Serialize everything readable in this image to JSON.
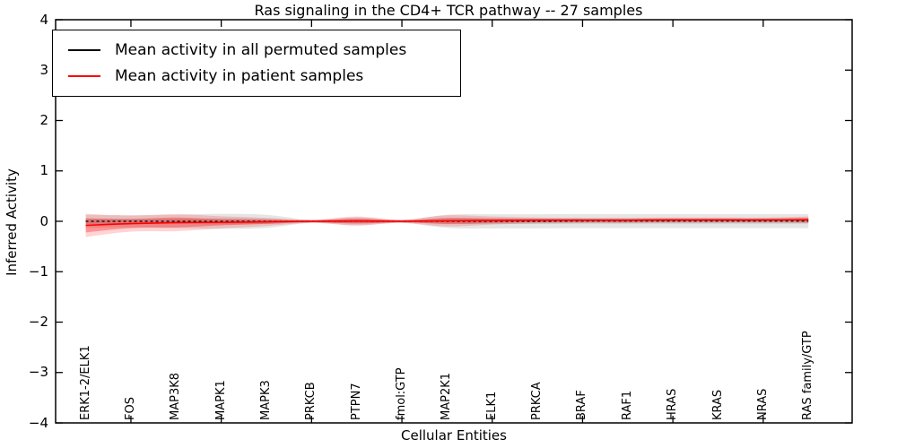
{
  "header": {
    "title": "Ras signaling in the CD4+ TCR pathway -- 27 samples"
  },
  "axes": {
    "ylabel": "Inferred Activity",
    "xlabel": "Cellular Entities",
    "ytick_labels": [
      "4",
      "3",
      "2",
      "1",
      "0",
      "-1",
      "-2",
      "-3",
      "-4"
    ]
  },
  "legend": {
    "items": [
      {
        "label": "Mean activity in all permuted samples",
        "color": "#000000"
      },
      {
        "label": "Mean activity in patient samples",
        "color": "#ff0000"
      }
    ]
  },
  "chart_data": {
    "type": "line",
    "title": "Ras signaling in the CD4+ TCR pathway -- 27 samples",
    "xlabel": "Cellular Entities",
    "ylabel": "Inferred Activity",
    "ylim": [
      -4,
      4
    ],
    "ytick_step": 1,
    "grid": false,
    "legend_position": "upper left",
    "categories": [
      "ERK1-2/ELK1",
      "FOS",
      "MAP3K8",
      "MAPK1",
      "MAPK3",
      "PRKCB",
      "PTPN7",
      "fmol:GTP",
      "MAP2K1",
      "ELK1",
      "PRKCA",
      "BRAF",
      "RAF1",
      "HRAS",
      "KRAS",
      "NRAS",
      "RAS family/GTP"
    ],
    "series": [
      {
        "name": "Mean activity in all permuted samples",
        "color": "#000000",
        "style": "dashed",
        "values": [
          0,
          0,
          0,
          0,
          0,
          0,
          0,
          0,
          0,
          0,
          0,
          0.005,
          0.005,
          0.005,
          0.005,
          0.005,
          0.005
        ]
      },
      {
        "name": "Mean activity in patient samples",
        "color": "#ff0000",
        "style": "solid",
        "values": [
          -0.08,
          -0.045,
          -0.025,
          -0.02,
          -0.01,
          0,
          0.005,
          0,
          0.01,
          0.015,
          0.02,
          0.02,
          0.02,
          0.025,
          0.025,
          0.025,
          0.03
        ]
      }
    ],
    "bands": [
      {
        "name": "permuted-outer-band",
        "center_series": 0,
        "fill": "rgba(0,0,0,0.10)",
        "half_widths": [
          0.13,
          0.12,
          0.13,
          0.15,
          0.13,
          0.03,
          0.08,
          0.03,
          0.13,
          0.14,
          0.14,
          0.14,
          0.14,
          0.14,
          0.14,
          0.14,
          0.14
        ]
      },
      {
        "name": "permuted-inner-band",
        "center_series": 0,
        "fill": "rgba(0,0,0,0.13)",
        "half_widths": [
          0.05,
          0.05,
          0.05,
          0.06,
          0.05,
          0.02,
          0.04,
          0.02,
          0.05,
          0.05,
          0.05,
          0.05,
          0.05,
          0.05,
          0.05,
          0.05,
          0.05
        ]
      },
      {
        "name": "patient-outer-band",
        "center_series": 1,
        "fill": "rgba(255,0,0,0.17)",
        "half_widths": [
          0.23,
          0.16,
          0.17,
          0.12,
          0.08,
          0.03,
          0.09,
          0.03,
          0.11,
          0.08,
          0.055,
          0.05,
          0.05,
          0.05,
          0.05,
          0.05,
          0.065
        ]
      },
      {
        "name": "patient-inner-band",
        "center_series": 1,
        "fill": "rgba(255,0,0,0.30)",
        "half_widths": [
          0.14,
          0.09,
          0.1,
          0.06,
          0.04,
          0.02,
          0.05,
          0.02,
          0.06,
          0.045,
          0.035,
          0.03,
          0.03,
          0.03,
          0.03,
          0.03,
          0.04
        ]
      }
    ]
  }
}
